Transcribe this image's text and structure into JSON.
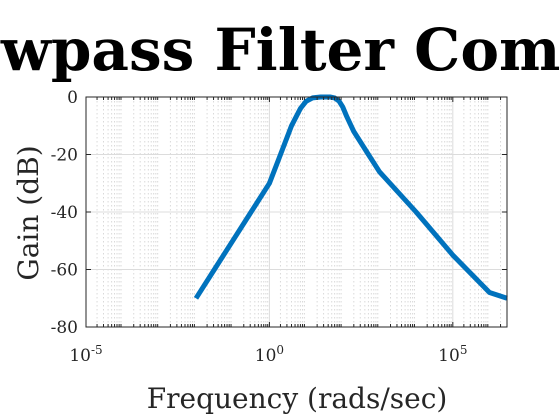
{
  "chart_data": {
    "type": "line",
    "title": "Lowpass Filter Compa",
    "xlabel": "Frequency (rads/sec)",
    "ylabel": "Gain (dB)",
    "x_scale": "log",
    "xlim": [
      1e-05,
      3000000
    ],
    "ylim": [
      -80,
      0
    ],
    "x_ticks": [
      {
        "value": 1e-05,
        "base": "10",
        "exp": "-5"
      },
      {
        "value": 1,
        "base": "10",
        "exp": "0"
      },
      {
        "value": 100000,
        "base": "10",
        "exp": "5"
      }
    ],
    "y_ticks": [
      0,
      -20,
      -40,
      -60,
      -80
    ],
    "grid": true,
    "line_color": "#0072bd",
    "series": [
      {
        "x": [
          0.01,
          0.03,
          0.1,
          0.3,
          1,
          2,
          4,
          7,
          10,
          15,
          25,
          35,
          45,
          60,
          80,
          100,
          130,
          200,
          500,
          1000,
          10000,
          100000,
          1000000,
          3000000
        ],
        "y": [
          -70,
          -60.5,
          -50,
          -40.5,
          -30,
          -20,
          -10,
          -4,
          -1.5,
          -0.3,
          0,
          0,
          0,
          -0.3,
          -1.5,
          -3.5,
          -7,
          -12,
          -20,
          -26,
          -40,
          -55,
          -68,
          -70
        ]
      }
    ]
  }
}
